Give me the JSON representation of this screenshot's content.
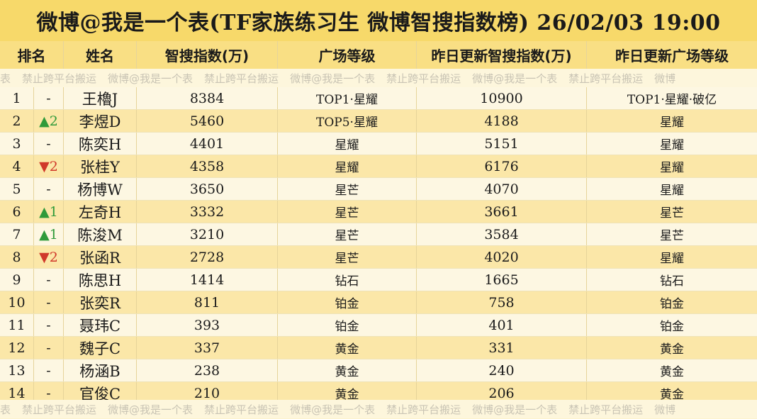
{
  "title": "微博@我是一个表(TF家族练习生 微博智搜指数榜)  26/02/03 19:00",
  "columns": [
    "排名",
    "姓名",
    "智搜指数(万)",
    "广场等级",
    "昨日更新智搜指数(万)",
    "昨日更新广场等级"
  ],
  "watermark": [
    "表",
    "禁止跨平台搬运",
    "微博@我是一个表",
    "禁止跨平台搬运",
    "微博@我是一个表",
    "禁止跨平台搬运",
    "微博@我是一个表",
    "禁止跨平台搬运",
    "微博"
  ],
  "rows": [
    {
      "rank": "1",
      "change": "-",
      "name": "王櫓J",
      "index": "8384",
      "level": "TOP1·星耀",
      "prev_index": "10900",
      "prev_level": "TOP1·星耀·破亿"
    },
    {
      "rank": "2",
      "change": "▲2",
      "name": "李煜D",
      "index": "5460",
      "level": "TOP5·星耀",
      "prev_index": "4188",
      "prev_level": "星耀"
    },
    {
      "rank": "3",
      "change": "-",
      "name": "陈奕H",
      "index": "4401",
      "level": "星耀",
      "prev_index": "5151",
      "prev_level": "星耀"
    },
    {
      "rank": "4",
      "change": "▼2",
      "name": "张桂Y",
      "index": "4358",
      "level": "星耀",
      "prev_index": "6176",
      "prev_level": "星耀"
    },
    {
      "rank": "5",
      "change": "-",
      "name": "杨博W",
      "index": "3650",
      "level": "星芒",
      "prev_index": "4070",
      "prev_level": "星耀"
    },
    {
      "rank": "6",
      "change": "▲1",
      "name": "左奇H",
      "index": "3332",
      "level": "星芒",
      "prev_index": "3661",
      "prev_level": "星芒"
    },
    {
      "rank": "7",
      "change": "▲1",
      "name": "陈浚M",
      "index": "3210",
      "level": "星芒",
      "prev_index": "3584",
      "prev_level": "星芒"
    },
    {
      "rank": "8",
      "change": "▼2",
      "name": "张函R",
      "index": "2728",
      "level": "星芒",
      "prev_index": "4020",
      "prev_level": "星耀"
    },
    {
      "rank": "9",
      "change": "-",
      "name": "陈思H",
      "index": "1414",
      "level": "钻石",
      "prev_index": "1665",
      "prev_level": "钻石"
    },
    {
      "rank": "10",
      "change": "-",
      "name": "张奕R",
      "index": "811",
      "level": "铂金",
      "prev_index": "758",
      "prev_level": "铂金"
    },
    {
      "rank": "11",
      "change": "-",
      "name": "聂玮C",
      "index": "393",
      "level": "铂金",
      "prev_index": "401",
      "prev_level": "铂金"
    },
    {
      "rank": "12",
      "change": "-",
      "name": "魏子C",
      "index": "337",
      "level": "黄金",
      "prev_index": "331",
      "prev_level": "黄金"
    },
    {
      "rank": "13",
      "change": "-",
      "name": "杨涵B",
      "index": "238",
      "level": "黄金",
      "prev_index": "240",
      "prev_level": "黄金"
    },
    {
      "rank": "14",
      "change": "-",
      "name": "官俊C",
      "index": "210",
      "level": "黄金",
      "prev_index": "206",
      "prev_level": "黄金"
    }
  ],
  "colors": {
    "title_bg": "#f7d96a",
    "header_bg": "#f9df84",
    "row_light": "#fdf7e2",
    "row_dark": "#fbe7a8",
    "up": "#2f9a3a",
    "down": "#d0392b"
  }
}
